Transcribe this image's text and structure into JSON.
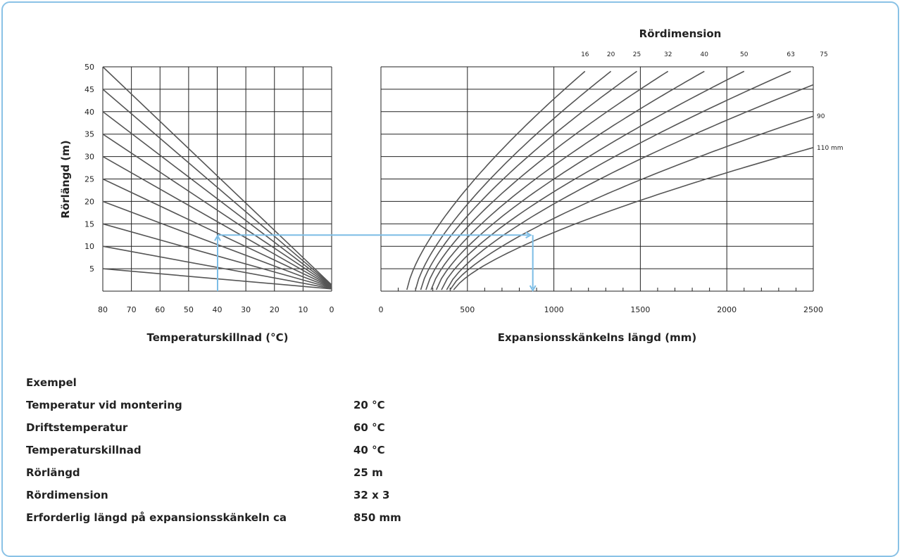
{
  "chart_data": [
    {
      "type": "line",
      "name": "left",
      "xlabel": "Temperaturskillnad (°C)",
      "ylabel": "Rörlängd (m)",
      "xlim": [
        80,
        0
      ],
      "ylim": [
        0,
        50
      ],
      "x_ticks": [
        "80",
        "70",
        "60",
        "50",
        "40",
        "30",
        "20",
        "10",
        "0"
      ],
      "y_ticks": [
        "50",
        "45",
        "40",
        "35",
        "30",
        "25",
        "20",
        "15",
        "10",
        "5"
      ],
      "grid": true,
      "series": [
        {
          "values": [
            [
              80,
              5
            ],
            [
              0,
              0.5
            ]
          ]
        },
        {
          "values": [
            [
              80,
              10
            ],
            [
              0,
              0.6
            ]
          ]
        },
        {
          "values": [
            [
              80,
              15
            ],
            [
              0,
              0.7
            ]
          ]
        },
        {
          "values": [
            [
              80,
              20
            ],
            [
              0,
              0.8
            ]
          ]
        },
        {
          "values": [
            [
              80,
              25
            ],
            [
              0,
              0.9
            ]
          ]
        },
        {
          "values": [
            [
              80,
              30
            ],
            [
              0,
              1.0
            ]
          ]
        },
        {
          "values": [
            [
              80,
              35
            ],
            [
              0,
              1.1
            ]
          ]
        },
        {
          "values": [
            [
              80,
              40
            ],
            [
              0,
              1.2
            ]
          ]
        },
        {
          "values": [
            [
              80,
              45
            ],
            [
              0,
              1.3
            ]
          ]
        },
        {
          "values": [
            [
              80,
              50
            ],
            [
              0,
              1.4
            ]
          ]
        }
      ]
    },
    {
      "type": "line",
      "name": "right",
      "title": "Rördimension",
      "xlabel": "Expansionsskänkelns längd (mm)",
      "xlim": [
        0,
        2500
      ],
      "ylim": [
        0,
        50
      ],
      "x_ticks": [
        "0",
        "500",
        "1000",
        "1500",
        "2000",
        "2500"
      ],
      "grid": true,
      "series": [
        {
          "name": "16",
          "start": 150,
          "end": [
            1180,
            49
          ]
        },
        {
          "name": "20",
          "start": 200,
          "end": [
            1330,
            49
          ]
        },
        {
          "name": "25",
          "start": 230,
          "end": [
            1480,
            49
          ]
        },
        {
          "name": "32",
          "start": 260,
          "end": [
            1660,
            49
          ]
        },
        {
          "name": "40",
          "start": 290,
          "end": [
            1870,
            49
          ]
        },
        {
          "name": "50",
          "start": 320,
          "end": [
            2100,
            49
          ]
        },
        {
          "name": "63",
          "start": 350,
          "end": [
            2370,
            49
          ]
        },
        {
          "name": "75",
          "start": 380,
          "end": [
            2500,
            46
          ]
        },
        {
          "name": "90",
          "start": 400,
          "end": [
            2500,
            39
          ]
        },
        {
          "name": "110 mm",
          "start": 420,
          "end": [
            2500,
            32
          ]
        }
      ],
      "example_path": {
        "temp_diff": 40,
        "pipe_length": 12.5,
        "leg_length": 870,
        "color": "#7cbde6"
      }
    }
  ],
  "example": {
    "heading": "Exempel",
    "rows": [
      {
        "label": "Temperatur vid montering",
        "value": "20 °C"
      },
      {
        "label": "Driftstemperatur",
        "value": "60 °C"
      },
      {
        "label": "Temperaturskillnad",
        "value": "40 °C"
      },
      {
        "label": "Rörlängd",
        "value": "25 m"
      },
      {
        "label": "Rördimension",
        "value": "32 x 3"
      },
      {
        "label": "Erforderlig längd på expansionsskänkeln ca",
        "value": "850 mm"
      }
    ]
  }
}
